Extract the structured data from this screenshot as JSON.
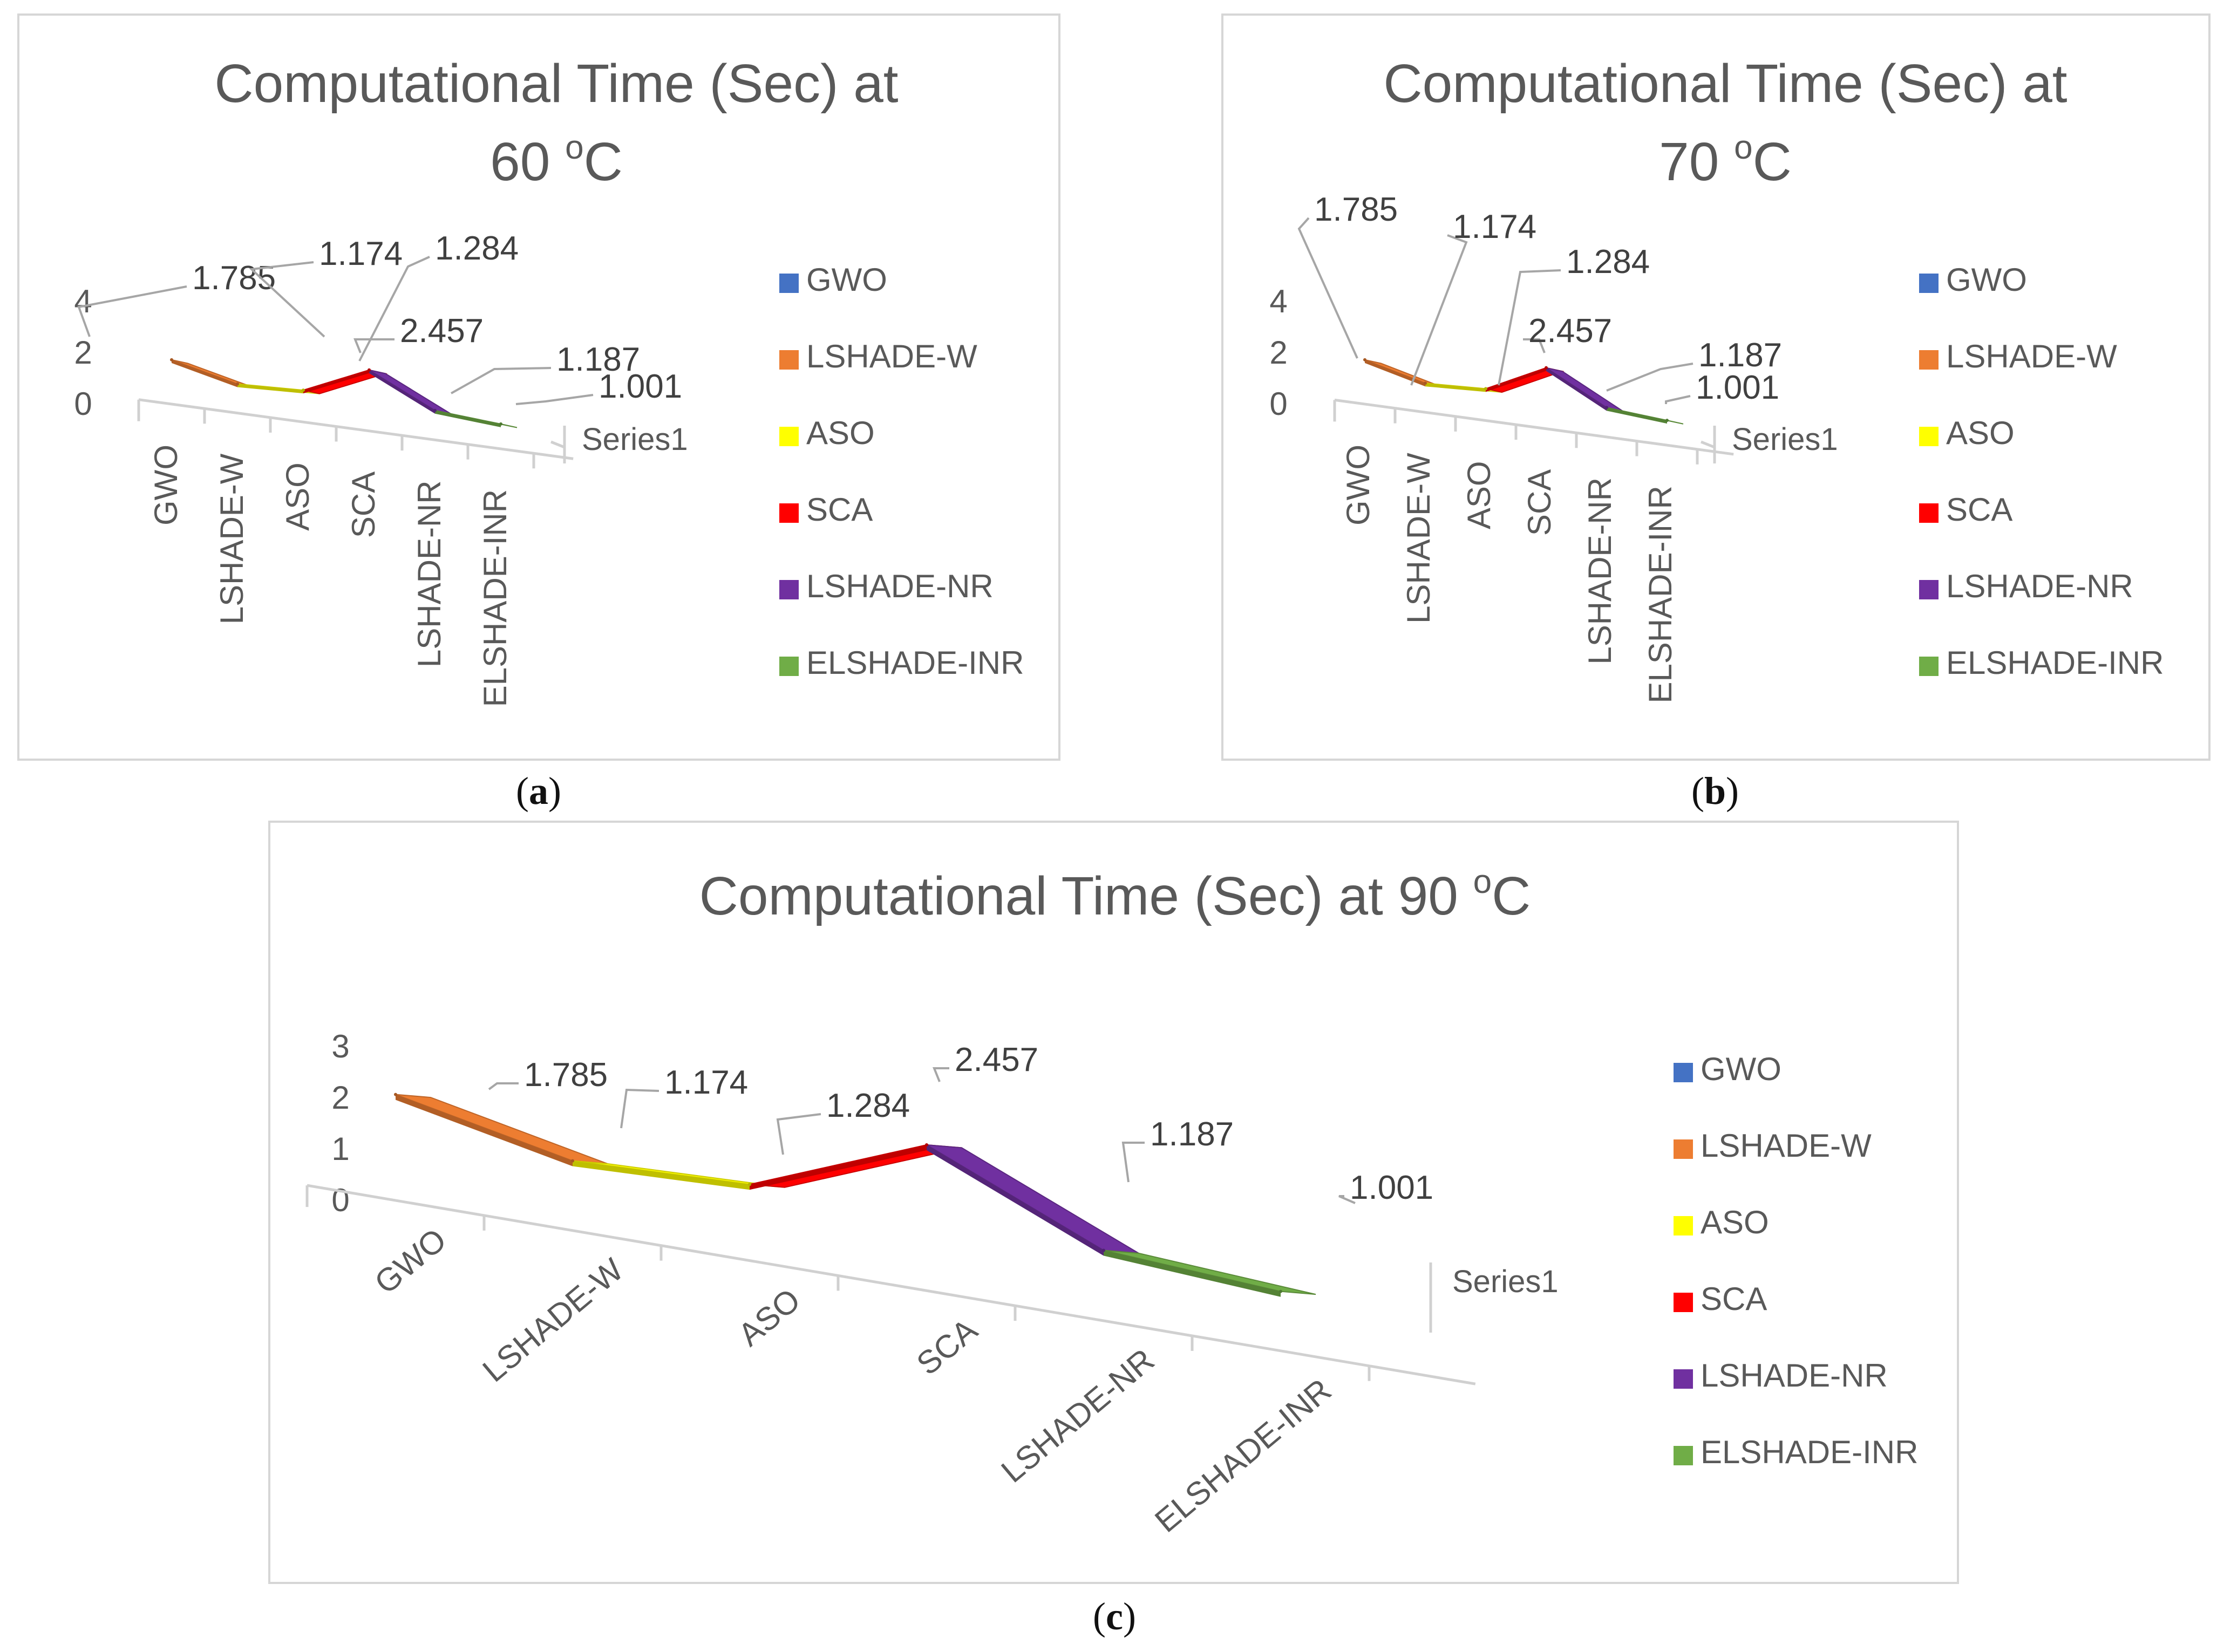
{
  "chart_data": [
    {
      "panel": "a",
      "type": "line",
      "title_line1": "Computational Time (Sec) at",
      "title_line2": "60 ",
      "title_sup": "o",
      "title_unit": "C",
      "categories": [
        "GWO",
        "LSHADE-W",
        "ASO",
        "SCA",
        "LSHADE-NR",
        "ELSHADE-INR"
      ],
      "series": [
        {
          "name": "Series1",
          "values": [
            1.785,
            1.174,
            1.284,
            2.457,
            1.187,
            1.001
          ]
        }
      ],
      "data_labels": [
        "1.785",
        "1.174",
        "1.284",
        "2.457",
        "1.187",
        "1.001"
      ],
      "y_ticks": [
        "0",
        "2",
        "4"
      ],
      "ylim": [
        0,
        4
      ],
      "depth_axis_label": "Series1",
      "legend": [
        "GWO",
        "LSHADE-W",
        "ASO",
        "SCA",
        "LSHADE-NR",
        "ELSHADE-INR"
      ]
    },
    {
      "panel": "b",
      "type": "line",
      "title_line1": "Computational Time (Sec) at",
      "title_line2": "70 ",
      "title_sup": "o",
      "title_unit": "C",
      "categories": [
        "GWO",
        "LSHADE-W",
        "ASO",
        "SCA",
        "LSHADE-NR",
        "ELSHADE-INR"
      ],
      "series": [
        {
          "name": "Series1",
          "values": [
            1.785,
            1.174,
            1.284,
            2.457,
            1.187,
            1.001
          ]
        }
      ],
      "data_labels": [
        "1.785",
        "1.174",
        "1.284",
        "2.457",
        "1.187",
        "1.001"
      ],
      "y_ticks": [
        "0",
        "2",
        "4"
      ],
      "ylim": [
        0,
        4
      ],
      "depth_axis_label": "Series1",
      "legend": [
        "GWO",
        "LSHADE-W",
        "ASO",
        "SCA",
        "LSHADE-NR",
        "ELSHADE-INR"
      ]
    },
    {
      "panel": "c",
      "type": "line",
      "title_line1": "Computational Time (Sec) at 90 ",
      "title_line2": "",
      "title_sup": "o",
      "title_unit": "C",
      "categories": [
        "GWO",
        "LSHADE-W",
        "ASO",
        "SCA",
        "LSHADE-NR",
        "ELSHADE-INR"
      ],
      "series": [
        {
          "name": "Series1",
          "values": [
            1.785,
            1.174,
            1.284,
            2.457,
            1.187,
            1.001
          ]
        }
      ],
      "data_labels": [
        "1.785",
        "1.174",
        "1.284",
        "2.457",
        "1.187",
        "1.001"
      ],
      "y_ticks": [
        "0",
        "1",
        "2",
        "3"
      ],
      "ylim": [
        0,
        3
      ],
      "depth_axis_label": "Series1",
      "legend": [
        "GWO",
        "LSHADE-W",
        "ASO",
        "SCA",
        "LSHADE-NR",
        "ELSHADE-INR"
      ]
    }
  ],
  "legend_colors": [
    "#4472C4",
    "#ED7D31",
    "#FFFF00",
    "#FF0000",
    "#7030A0",
    "#70AD47"
  ],
  "panel_labels": [
    {
      "open": "(",
      "letter": "a",
      "close": ")"
    },
    {
      "open": "(",
      "letter": "b",
      "close": ")"
    },
    {
      "open": "(",
      "letter": "c",
      "close": ")"
    }
  ]
}
